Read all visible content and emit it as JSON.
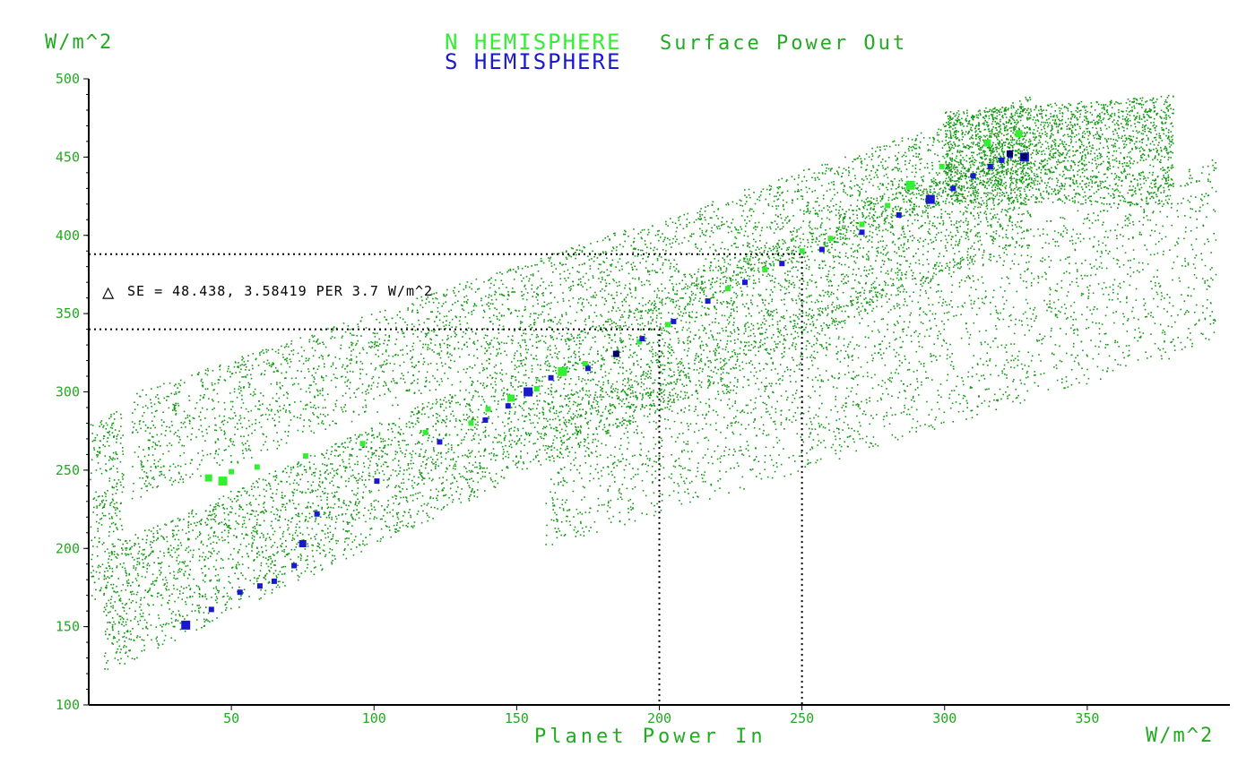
{
  "chart_data": {
    "type": "scatter",
    "title_series_n": "N HEMISPHERE",
    "title": "Surface Power Out",
    "title_series_s": "S HEMISPHERE",
    "ylabel": "W/m^2",
    "xlabel": "Planet Power In",
    "xunit": "W/m^2",
    "xlim": [
      0,
      400
    ],
    "ylim": [
      100,
      500
    ],
    "xticks": [
      50,
      100,
      150,
      200,
      250,
      300,
      350
    ],
    "xtick_labels": [
      "50",
      "100",
      "150",
      "200",
      "250",
      "300",
      "350"
    ],
    "yticks": [
      100,
      150,
      200,
      250,
      300,
      350,
      400,
      450,
      500
    ],
    "ytick_labels": [
      "100",
      "150",
      "200",
      "250",
      "300",
      "350",
      "400",
      "450",
      "500"
    ],
    "grid": false,
    "annotation": {
      "symbol": "△",
      "text": "SE = 48.438, 3.58419 PER 3.7 W/m^2",
      "guides": [
        {
          "x": 200,
          "y": 340
        },
        {
          "x": 250,
          "y": 388
        }
      ]
    },
    "colors": {
      "cloud": "#119911",
      "north": "#33ee33",
      "south": "#1a1acc",
      "highlight": "#000066",
      "axis_text": "#22aa22"
    },
    "series": [
      {
        "name": "N HEMISPHERE",
        "color": "#33ee33",
        "points": [
          [
            42,
            245
          ],
          [
            47,
            243
          ],
          [
            50,
            249
          ],
          [
            59,
            252
          ],
          [
            76,
            259
          ],
          [
            96,
            267
          ],
          [
            118,
            274
          ],
          [
            134,
            280
          ],
          [
            140,
            289
          ],
          [
            148,
            296
          ],
          [
            157,
            302
          ],
          [
            166,
            313
          ],
          [
            174,
            318
          ],
          [
            193,
            332
          ],
          [
            203,
            343
          ],
          [
            224,
            366
          ],
          [
            237,
            378
          ],
          [
            250,
            390
          ],
          [
            260,
            398
          ],
          [
            271,
            407
          ],
          [
            280,
            419
          ],
          [
            288,
            432
          ],
          [
            299,
            444
          ],
          [
            315,
            459
          ],
          [
            326,
            465
          ]
        ],
        "sizes": [
          2,
          3,
          1,
          1,
          1,
          1,
          1,
          1,
          1,
          2,
          1,
          3,
          1,
          1,
          1,
          1,
          1,
          1,
          1,
          1,
          1,
          3,
          1,
          2,
          2
        ]
      },
      {
        "name": "S HEMISPHERE",
        "color": "#1a1acc",
        "points": [
          [
            34,
            151
          ],
          [
            43,
            161
          ],
          [
            53,
            172
          ],
          [
            60,
            176
          ],
          [
            65,
            179
          ],
          [
            72,
            189
          ],
          [
            75,
            203
          ],
          [
            80,
            222
          ],
          [
            101,
            243
          ],
          [
            123,
            268
          ],
          [
            139,
            282
          ],
          [
            147,
            291
          ],
          [
            154,
            300
          ],
          [
            162,
            309
          ],
          [
            175,
            315
          ],
          [
            185,
            324
          ],
          [
            194,
            334
          ],
          [
            205,
            345
          ],
          [
            217,
            358
          ],
          [
            230,
            370
          ],
          [
            243,
            382
          ],
          [
            257,
            391
          ],
          [
            271,
            402
          ],
          [
            284,
            413
          ],
          [
            295,
            423
          ],
          [
            303,
            430
          ],
          [
            310,
            438
          ],
          [
            316,
            444
          ],
          [
            320,
            448
          ],
          [
            323,
            451
          ],
          [
            328,
            450
          ]
        ],
        "sizes": [
          3,
          1,
          1,
          1,
          1,
          1,
          2,
          1,
          1,
          1,
          1,
          1,
          3,
          1,
          1,
          1,
          1,
          1,
          1,
          1,
          1,
          1,
          1,
          1,
          3,
          1,
          1,
          1,
          1,
          1,
          3
        ]
      }
    ],
    "scatter_cloud_regions": [
      {
        "x0": 0,
        "x1": 12,
        "ylo0": 160,
        "yhi0": 280,
        "ylo1": 200,
        "yhi1": 290,
        "n": 260
      },
      {
        "x0": 5,
        "x1": 330,
        "ylo0": 120,
        "yhi0": 200,
        "ylo1": 400,
        "yhi1": 470,
        "n": 5200
      },
      {
        "x0": 15,
        "x1": 330,
        "ylo0": 230,
        "yhi0": 300,
        "ylo1": 440,
        "yhi1": 490,
        "n": 3200
      },
      {
        "x0": 300,
        "x1": 380,
        "ylo0": 420,
        "yhi0": 480,
        "ylo1": 420,
        "yhi1": 490,
        "n": 2200
      },
      {
        "x0": 160,
        "x1": 395,
        "ylo0": 200,
        "yhi0": 290,
        "ylo1": 330,
        "yhi1": 450,
        "n": 2600
      }
    ]
  }
}
